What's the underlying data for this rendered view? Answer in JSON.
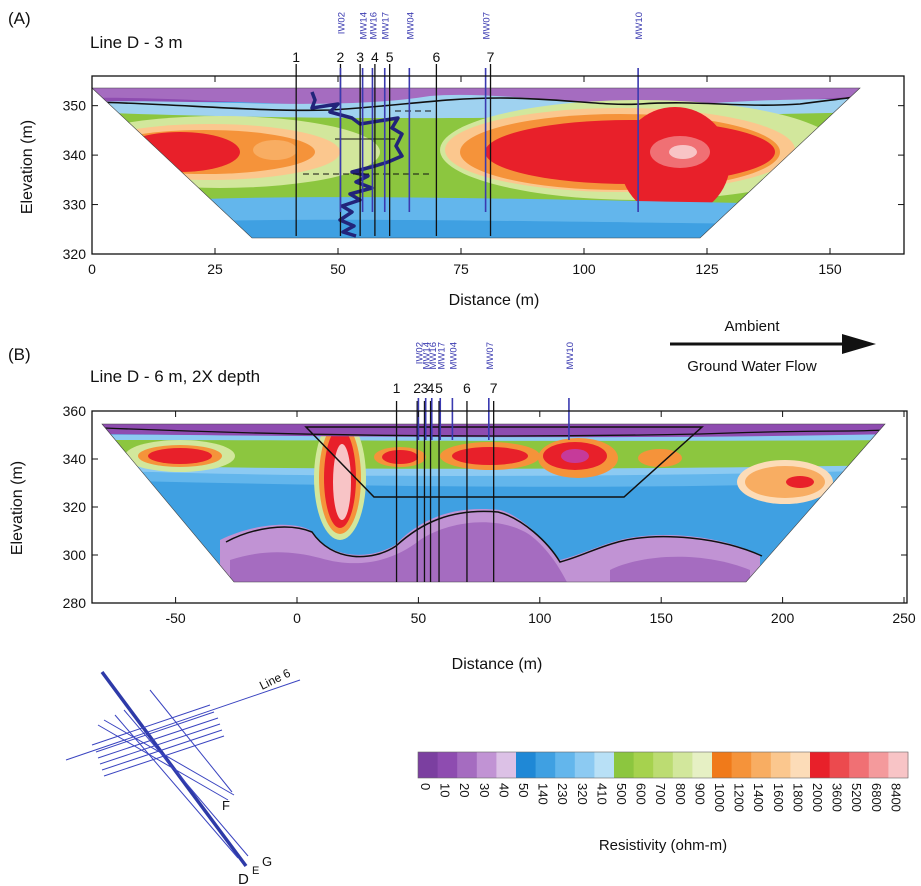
{
  "panels": [
    {
      "panel_label": "(A)",
      "title": "Line D - 3 m",
      "xlabel": "Distance (m)",
      "ylabel": "Elevation (m)",
      "xlim": [
        0,
        165
      ],
      "ylim": [
        320,
        356
      ],
      "xticks": [
        0,
        25,
        50,
        75,
        100,
        125,
        150
      ],
      "yticks": [
        320,
        330,
        340,
        350
      ],
      "numbered_lines": [
        {
          "label": "1",
          "x": 41.5
        },
        {
          "label": "2",
          "x": 50.5
        },
        {
          "label": "3",
          "x": 54.5
        },
        {
          "label": "4",
          "x": 57.5
        },
        {
          "label": "5",
          "x": 60.5
        },
        {
          "label": "6",
          "x": 70
        },
        {
          "label": "7",
          "x": 81
        }
      ],
      "wells": [
        {
          "label": "IW02",
          "x": 50.5
        },
        {
          "label": "MW14",
          "x": 55
        },
        {
          "label": "MW16",
          "x": 57
        },
        {
          "label": "MW17",
          "x": 59.5
        },
        {
          "label": "MW04",
          "x": 64.5
        },
        {
          "label": "MW07",
          "x": 80
        },
        {
          "label": "MW10",
          "x": 111
        }
      ]
    },
    {
      "panel_label": "(B)",
      "title": "Line D - 6 m, 2X depth",
      "xlabel": "Distance (m)",
      "ylabel": "Elevation (m)",
      "xlim": [
        -80,
        250
      ],
      "ylim": [
        280,
        360
      ],
      "xticks": [
        -50,
        0,
        50,
        100,
        150,
        200,
        250
      ],
      "yticks": [
        280,
        300,
        320,
        340,
        360
      ],
      "numbered_lines": [
        {
          "label": "1",
          "x": 41
        },
        {
          "label": "2",
          "x": 49.5
        },
        {
          "label": "3",
          "x": 52.5
        },
        {
          "label": "4",
          "x": 55
        },
        {
          "label": "5",
          "x": 58.5
        },
        {
          "label": "6",
          "x": 70
        },
        {
          "label": "7",
          "x": 81
        }
      ],
      "wells": [
        {
          "label": "IW02",
          "x": 50
        },
        {
          "label": "MW14",
          "x": 53
        },
        {
          "label": "MW16",
          "x": 55.5
        },
        {
          "label": "MW17",
          "x": 59
        },
        {
          "label": "MW04",
          "x": 64
        },
        {
          "label": "MW07",
          "x": 79
        },
        {
          "label": "MW10",
          "x": 112
        }
      ]
    }
  ],
  "flow_arrow": {
    "line1": "Ambient",
    "line2": "Ground Water Flow"
  },
  "map": {
    "labels": {
      "line6": "Line 6",
      "f": "F",
      "d": "D",
      "e": "E",
      "g": "G"
    }
  },
  "chart_data": {
    "type": "heatmap",
    "colorbar_label": "Resistivity (ohm-m)",
    "levels": [
      "0",
      "10",
      "20",
      "30",
      "40",
      "50",
      "140",
      "230",
      "320",
      "410",
      "500",
      "600",
      "700",
      "800",
      "900",
      "1000",
      "1200",
      "1400",
      "1600",
      "1800",
      "2000",
      "3600",
      "5200",
      "6800",
      "8400"
    ],
    "colors": [
      "#7b3fa0",
      "#8e4cb0",
      "#a56cc0",
      "#c193d4",
      "#dcc1e6",
      "#1f88d6",
      "#3fa0e2",
      "#63b6ec",
      "#8ccaf2",
      "#b8e0f6",
      "#8cc63f",
      "#a6d24e",
      "#bcdc72",
      "#d2e79c",
      "#e6f0c4",
      "#f07a1a",
      "#f5933a",
      "#f8ad62",
      "#fbc78e",
      "#fcdcb8",
      "#e8202a",
      "#ec4a4e",
      "#f07074",
      "#f49a9c",
      "#f8c4c6"
    ],
    "notes": [
      "Line D - 3 m",
      "Line D - 6 m, 2X depth"
    ]
  }
}
